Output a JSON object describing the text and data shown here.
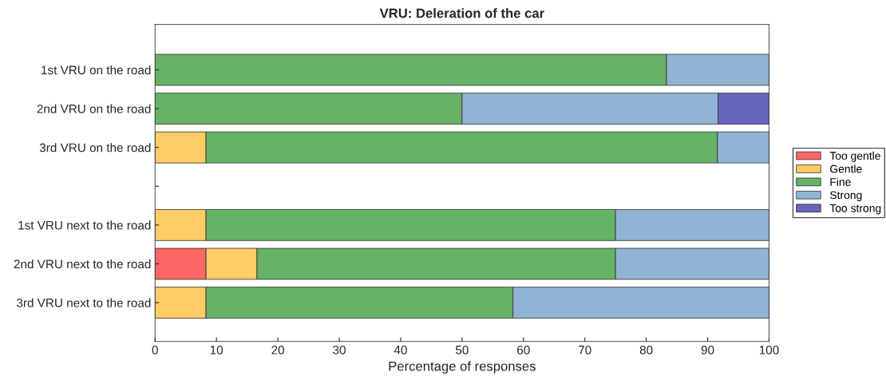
{
  "chart_data": {
    "type": "bar",
    "orientation": "horizontal",
    "stacked": true,
    "title": "VRU: Deleration of the car",
    "xlabel": "Percentage of responses",
    "categories": [
      "1st VRU on the road",
      "2nd VRU on the road",
      "3rd VRU on the road",
      null,
      "1st VRU next to the road",
      "2nd VRU next to the road",
      "3rd VRU next to the road"
    ],
    "series": [
      {
        "name": "Too gentle",
        "color": "#ff6666",
        "values": [
          null,
          null,
          null,
          null,
          null,
          8.3,
          null
        ]
      },
      {
        "name": "Gentle",
        "color": "#ffcc66",
        "values": [
          null,
          null,
          8.3,
          null,
          8.3,
          8.3,
          8.3
        ]
      },
      {
        "name": "Fine",
        "color": "#66b266",
        "values": [
          83.3,
          50,
          83.3,
          null,
          66.7,
          58.4,
          50
        ]
      },
      {
        "name": "Strong",
        "color": "#92b4d4",
        "values": [
          16.7,
          41.7,
          8.4,
          null,
          25,
          25,
          41.7
        ]
      },
      {
        "name": "Too strong",
        "color": "#6666bb",
        "values": [
          null,
          8.3,
          null,
          null,
          null,
          null,
          null
        ]
      }
    ],
    "xlim": [
      0,
      100
    ],
    "xticks": [
      0,
      10,
      20,
      30,
      40,
      50,
      60,
      70,
      80,
      90,
      100
    ],
    "grid": false,
    "legend": "right"
  }
}
